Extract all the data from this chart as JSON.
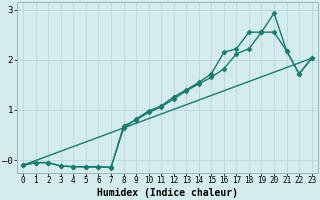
{
  "title": "",
  "xlabel": "Humidex (Indice chaleur)",
  "ylabel": "",
  "background_color": "#d4ecee",
  "grid_color": "#b8d8dc",
  "line_color": "#1a7a6e",
  "xlim": [
    -0.5,
    23.5
  ],
  "ylim": [
    -0.25,
    3.15
  ],
  "xticks": [
    0,
    1,
    2,
    3,
    4,
    5,
    6,
    7,
    8,
    9,
    10,
    11,
    12,
    13,
    14,
    15,
    16,
    17,
    18,
    19,
    20,
    21,
    22,
    23
  ],
  "yticks": [
    0,
    1,
    2,
    3
  ],
  "ytick_labels": [
    "–0",
    "1",
    "2",
    "3"
  ],
  "line1_x": [
    0,
    1,
    2,
    3,
    4,
    5,
    6,
    7,
    8,
    9,
    10,
    11,
    12,
    13,
    14,
    15,
    16,
    17,
    18,
    19,
    20,
    21,
    22,
    23
  ],
  "line1_y": [
    -0.1,
    -0.05,
    -0.05,
    -0.12,
    -0.13,
    -0.13,
    -0.13,
    -0.15,
    0.68,
    0.8,
    0.95,
    1.06,
    1.22,
    1.38,
    1.52,
    1.65,
    1.82,
    2.12,
    2.22,
    2.55,
    2.93,
    2.18,
    1.72,
    2.03
  ],
  "line2_x": [
    0,
    1,
    2,
    3,
    4,
    5,
    6,
    7,
    8,
    9,
    10,
    11,
    12,
    13,
    14,
    15,
    16,
    17,
    18,
    19,
    20,
    21,
    22,
    23
  ],
  "line2_y": [
    -0.1,
    -0.05,
    -0.05,
    -0.12,
    -0.13,
    -0.14,
    -0.14,
    -0.14,
    0.63,
    0.82,
    0.98,
    1.08,
    1.26,
    1.4,
    1.55,
    1.72,
    2.15,
    2.22,
    2.55,
    2.55,
    2.55,
    2.18,
    1.72,
    2.03
  ],
  "line3_x": [
    0,
    23
  ],
  "line3_y": [
    -0.1,
    2.03
  ],
  "marker": "D",
  "markersize": 2.5,
  "linewidth": 1.0
}
